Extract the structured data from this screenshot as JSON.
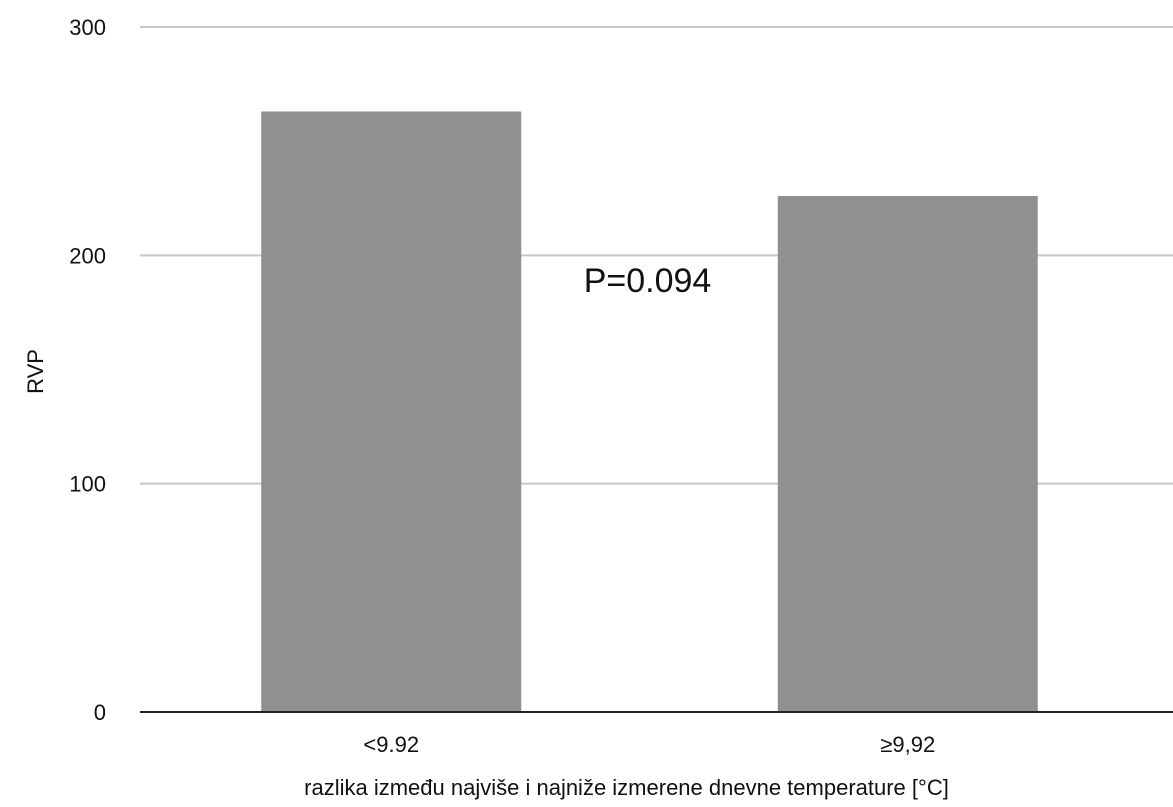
{
  "chart_data": {
    "type": "bar",
    "categories": [
      "<9.92",
      "≥9,92"
    ],
    "series": [
      {
        "values": [
          263,
          226
        ]
      }
    ],
    "xlabel": "razlika između najviše i najniže izmerene dnevne temperature [°C]",
    "ylabel": "RVP",
    "ylim": [
      0,
      300
    ],
    "yticks": [
      0,
      100,
      200,
      300
    ],
    "annotations": [
      {
        "text": "P=0.094"
      }
    ],
    "grid": true,
    "legend": "none",
    "colors": {
      "bar": "#909090",
      "grid": "#c8c8c8",
      "axis": "#222222"
    }
  }
}
